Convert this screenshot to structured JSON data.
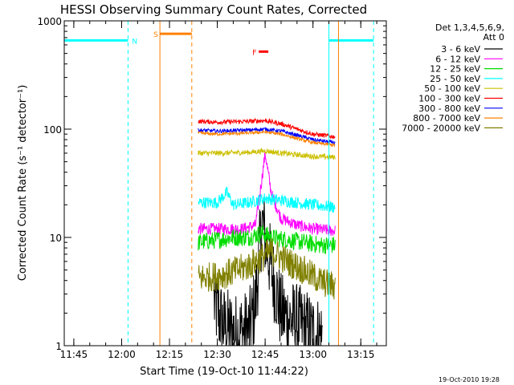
{
  "chart_data": {
    "type": "line",
    "title": "HESSI Observing Summary Count Rates, Corrected",
    "xlabel": "Start Time (19-Oct-10 11:44:22)",
    "ylabel": "Corrected Count Rate (s⁻¹ detector⁻¹)",
    "yscale": "log",
    "ylim": [
      1,
      1000
    ],
    "xlim": [
      "11:42",
      "13:23"
    ],
    "x_ticks": [
      "11:45",
      "12:00",
      "12:15",
      "12:30",
      "12:45",
      "13:00",
      "13:15"
    ],
    "y_ticks": [
      "1",
      "10",
      "100",
      "1000"
    ],
    "grid": false,
    "legend_header": [
      "Det 1,3,4,5,6,9,",
      "Att 0"
    ],
    "legend_position": "right",
    "series": [
      {
        "name": "3 - 6 keV",
        "color": "#000000",
        "x": [
          "12:29",
          "12:32",
          "12:36",
          "12:40",
          "12:42",
          "12:44",
          "12:45",
          "12:47",
          "12:50",
          "12:55",
          "13:00",
          "13:03"
        ],
        "y": [
          2.5,
          1.5,
          1.3,
          1.4,
          2.5,
          14,
          10,
          5,
          2,
          1.6,
          1.3,
          1.2
        ],
        "noise": 0.55
      },
      {
        "name": "6 - 12 keV",
        "color": "#ff00ff",
        "x": [
          "12:24",
          "12:30",
          "12:38",
          "12:42",
          "12:44",
          "12:45",
          "12:47",
          "12:50",
          "12:55",
          "13:00",
          "13:07"
        ],
        "y": [
          12,
          12,
          12,
          13,
          35,
          60,
          25,
          15,
          13,
          12,
          11.5
        ],
        "noise": 0.08
      },
      {
        "name": "12 - 25 keV",
        "color": "#00dd00",
        "x": [
          "12:24",
          "12:30",
          "12:35",
          "12:40",
          "12:44",
          "12:47",
          "12:52",
          "12:57",
          "13:02",
          "13:07"
        ],
        "y": [
          9,
          9.5,
          10,
          10,
          11,
          10,
          9.5,
          9,
          8.5,
          8.5
        ],
        "noise": 0.12
      },
      {
        "name": "25 - 50 keV",
        "color": "#00ffff",
        "x": [
          "12:24",
          "12:30",
          "12:33",
          "12:35",
          "12:40",
          "12:45",
          "12:50",
          "12:55",
          "13:00",
          "13:07"
        ],
        "y": [
          21,
          21,
          26,
          20,
          21,
          23,
          22,
          21,
          20,
          19
        ],
        "noise": 0.08
      },
      {
        "name": "50 - 100 keV",
        "color": "#ccc000",
        "x": [
          "12:24",
          "12:30",
          "12:40",
          "12:45",
          "12:50",
          "12:55",
          "13:00",
          "13:07"
        ],
        "y": [
          60,
          60,
          61,
          63,
          60,
          58,
          56,
          55
        ],
        "noise": 0.035
      },
      {
        "name": "100 - 300 keV",
        "color": "#ff0000",
        "x": [
          "12:24",
          "12:30",
          "12:40",
          "12:45",
          "12:50",
          "12:55",
          "13:00",
          "13:07"
        ],
        "y": [
          118,
          116,
          118,
          120,
          112,
          100,
          90,
          85
        ],
        "noise": 0.03
      },
      {
        "name": "300 - 800 keV",
        "color": "#0000ff",
        "x": [
          "12:24",
          "12:30",
          "12:40",
          "12:45",
          "12:50",
          "12:55",
          "13:00",
          "13:07"
        ],
        "y": [
          98,
          96,
          98,
          100,
          96,
          88,
          80,
          75
        ],
        "noise": 0.025
      },
      {
        "name": "800 - 7000 keV",
        "color": "#ff8000",
        "x": [
          "12:24",
          "12:30",
          "12:40",
          "12:45",
          "12:50",
          "12:55",
          "13:00",
          "13:07"
        ],
        "y": [
          92,
          90,
          92,
          94,
          90,
          82,
          75,
          71
        ],
        "noise": 0.02
      },
      {
        "name": "7000 - 20000 keV",
        "color": "#808000",
        "x": [
          "12:24",
          "12:30",
          "12:35",
          "12:40",
          "12:44",
          "12:47",
          "12:52",
          "12:57",
          "13:02",
          "13:07"
        ],
        "y": [
          4.2,
          4.4,
          4.8,
          5.5,
          6.5,
          7.5,
          6,
          5,
          4,
          3.5
        ],
        "noise": 0.2
      }
    ],
    "spacecraft_flags": [
      {
        "label": "N",
        "color": "#00ffff",
        "intervals": [
          [
            "11:42",
            "12:02"
          ],
          [
            "13:05",
            "13:19"
          ]
        ],
        "y": 660
      },
      {
        "label": "S",
        "color": "#ff8000",
        "intervals": [
          [
            "12:12",
            "12:22"
          ]
        ],
        "y": 760
      },
      {
        "label": "F",
        "color": "#ff0000",
        "intervals": [
          [
            "12:43",
            "12:46"
          ]
        ],
        "y": 520
      }
    ],
    "vertical_lines": [
      {
        "x": "11:42",
        "style": "solid",
        "color": "#00ffff"
      },
      {
        "x": "12:02",
        "style": "dashed",
        "color": "#00ffff"
      },
      {
        "x": "12:12",
        "style": "solid",
        "color": "#ff8000"
      },
      {
        "x": "12:22",
        "style": "dashed",
        "color": "#ff8000"
      },
      {
        "x": "13:05",
        "style": "solid",
        "color": "#00ffff"
      },
      {
        "x": "13:08",
        "style": "solid",
        "color": "#ff8000"
      },
      {
        "x": "13:19",
        "style": "dashed",
        "color": "#00ffff"
      }
    ]
  },
  "footer": {
    "timestamp": "19-Oct-2010 19:28"
  }
}
